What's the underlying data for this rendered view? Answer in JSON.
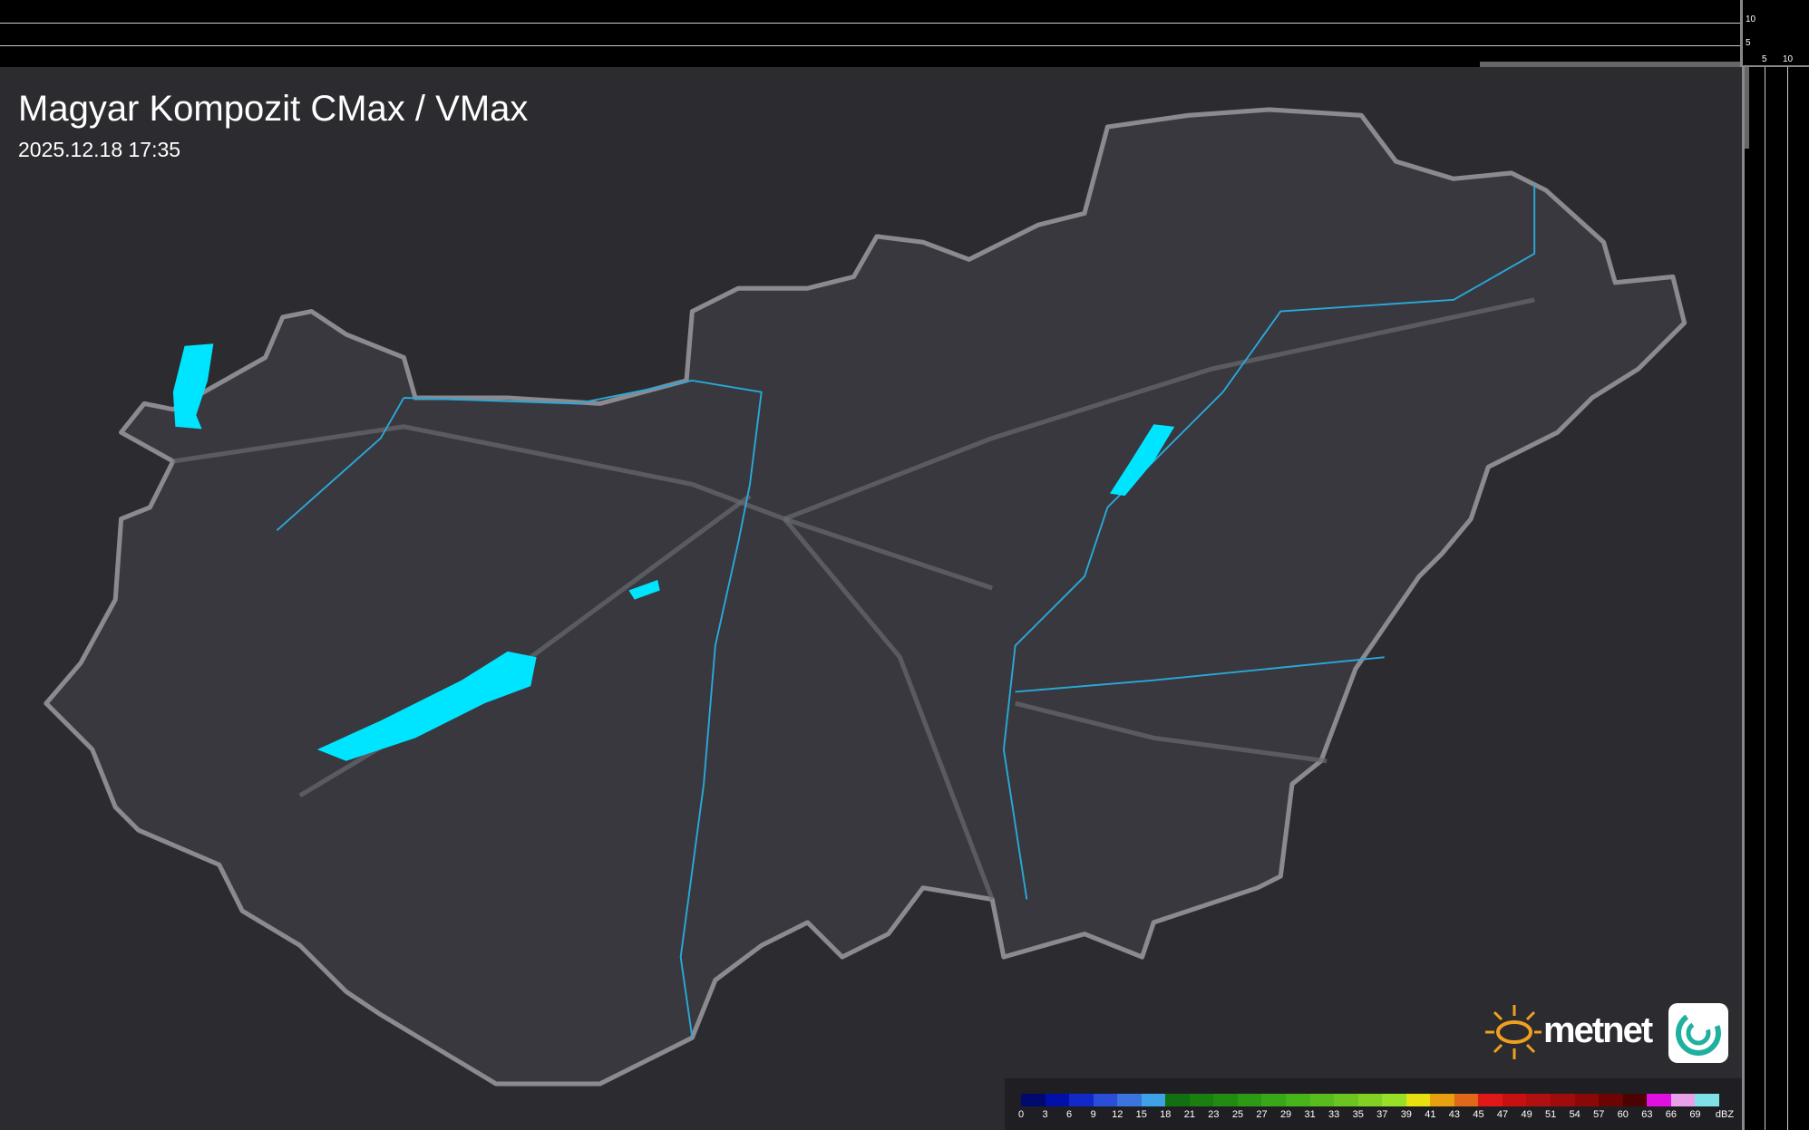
{
  "title": "Magyar Kompozit CMax / VMax",
  "timestamp": "2025.12.18 17:35",
  "axis_ticks": {
    "vertical": [
      "10",
      "5"
    ],
    "horizontal": [
      "5",
      "10"
    ]
  },
  "legend": {
    "unit": "dBZ",
    "labels": [
      "0",
      "3",
      "6",
      "9",
      "12",
      "15",
      "18",
      "21",
      "23",
      "25",
      "27",
      "29",
      "31",
      "33",
      "35",
      "37",
      "39",
      "41",
      "43",
      "45",
      "47",
      "49",
      "51",
      "54",
      "57",
      "60",
      "63",
      "66",
      "69"
    ],
    "colors": [
      "#000a6e",
      "#0010a8",
      "#1228c8",
      "#2a4ed8",
      "#3a74dc",
      "#3ea2e6",
      "#127012",
      "#1a7e10",
      "#228c12",
      "#2c9a14",
      "#38a818",
      "#48b41c",
      "#58bc1e",
      "#6cc420",
      "#82d024",
      "#98e028",
      "#e8e010",
      "#e8a010",
      "#e06818",
      "#e01818",
      "#c81010",
      "#b01010",
      "#a00c0c",
      "#8a0808",
      "#6c0404",
      "#4a0202",
      "#e010e0",
      "#e8a0e8",
      "#80e0e8"
    ]
  },
  "brand": {
    "name": "metnet"
  },
  "colors": {
    "lake": "#00e5ff",
    "river": "#2aa8d8",
    "border": "#8a8a90",
    "country_fill": "#38383e"
  }
}
